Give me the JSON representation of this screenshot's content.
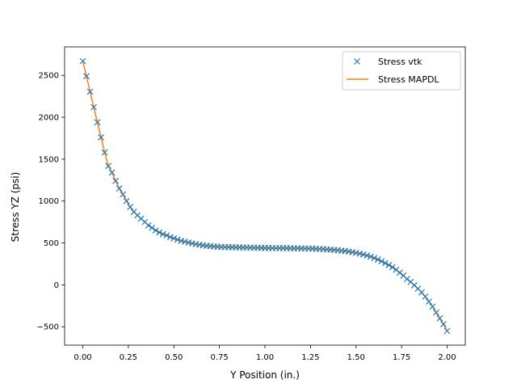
{
  "chart_data": {
    "type": "line",
    "title": "",
    "xlabel": "Y Position (in.)",
    "ylabel": "Stress YZ (psi)",
    "xlim": [
      -0.1,
      2.1
    ],
    "ylim": [
      -720,
      2840
    ],
    "xticks": [
      0.0,
      0.25,
      0.5,
      0.75,
      1.0,
      1.25,
      1.5,
      1.75,
      2.0
    ],
    "xtick_labels": [
      "0.00",
      "0.25",
      "0.50",
      "0.75",
      "1.00",
      "1.25",
      "1.50",
      "1.75",
      "2.00"
    ],
    "yticks": [
      -500,
      0,
      500,
      1000,
      1500,
      2000,
      2500
    ],
    "ytick_labels": [
      "−500",
      "0",
      "500",
      "1000",
      "1500",
      "2000",
      "2500"
    ],
    "grid": false,
    "legend_position": "top-right",
    "series": [
      {
        "name": "Stress vtk",
        "style": "markers",
        "marker": "x",
        "color": "#1f77b4",
        "x": [
          0.0,
          0.02,
          0.04,
          0.06,
          0.08,
          0.1,
          0.12,
          0.14,
          0.16,
          0.18,
          0.2,
          0.22,
          0.24,
          0.26,
          0.28,
          0.3,
          0.32,
          0.34,
          0.36,
          0.38,
          0.4,
          0.42,
          0.44,
          0.46,
          0.48,
          0.5,
          0.52,
          0.54,
          0.56,
          0.58,
          0.6,
          0.62,
          0.64,
          0.66,
          0.68,
          0.7,
          0.72,
          0.74,
          0.76,
          0.78,
          0.8,
          0.82,
          0.84,
          0.86,
          0.88,
          0.9,
          0.92,
          0.94,
          0.96,
          0.98,
          1.0,
          1.02,
          1.04,
          1.06,
          1.08,
          1.1,
          1.12,
          1.14,
          1.16,
          1.18,
          1.2,
          1.22,
          1.24,
          1.26,
          1.28,
          1.3,
          1.32,
          1.34,
          1.36,
          1.38,
          1.4,
          1.42,
          1.44,
          1.46,
          1.48,
          1.5,
          1.52,
          1.54,
          1.56,
          1.58,
          1.6,
          1.62,
          1.64,
          1.66,
          1.68,
          1.7,
          1.72,
          1.74,
          1.76,
          1.78,
          1.8,
          1.82,
          1.84,
          1.86,
          1.88,
          1.9,
          1.92,
          1.94,
          1.96,
          1.98,
          2.0
        ],
        "y": [
          2670,
          2490,
          2305,
          2120,
          1940,
          1760,
          1580,
          1420,
          1340,
          1240,
          1150,
          1080,
          1000,
          930,
          870,
          830,
          790,
          750,
          710,
          680,
          650,
          625,
          605,
          590,
          570,
          555,
          540,
          525,
          515,
          505,
          495,
          485,
          478,
          472,
          466,
          462,
          458,
          455,
          453,
          451,
          450,
          449,
          448,
          447,
          446,
          445,
          444,
          443,
          442,
          441,
          440,
          440,
          439,
          439,
          438,
          438,
          437,
          437,
          436,
          436,
          435,
          434,
          433,
          432,
          430,
          428,
          426,
          423,
          420,
          417,
          413,
          408,
          403,
          397,
          390,
          382,
          372,
          362,
          350,
          336,
          320,
          302,
          282,
          260,
          236,
          210,
          180,
          145,
          110,
          70,
          35,
          -5,
          -45,
          -90,
          -140,
          -200,
          -260,
          -330,
          -400,
          -470,
          -550
        ]
      },
      {
        "name": "Stress MAPDL",
        "style": "line",
        "color": "#ff7f0e",
        "x": [
          0.0,
          0.02,
          0.04,
          0.06,
          0.08,
          0.1,
          0.12,
          0.14,
          0.16,
          0.18,
          0.2,
          0.22,
          0.24,
          0.26,
          0.28,
          0.3,
          0.32,
          0.34,
          0.36,
          0.38,
          0.4,
          0.42,
          0.44,
          0.46,
          0.48,
          0.5,
          0.52,
          0.54,
          0.56,
          0.58,
          0.6,
          0.62,
          0.64,
          0.66,
          0.68,
          0.7,
          0.72,
          0.74,
          0.76,
          0.78,
          0.8,
          0.82,
          0.84,
          0.86,
          0.88,
          0.9,
          0.92,
          0.94,
          0.96,
          0.98,
          1.0,
          1.02,
          1.04,
          1.06,
          1.08,
          1.1,
          1.12,
          1.14,
          1.16,
          1.18,
          1.2,
          1.22,
          1.24,
          1.26,
          1.28,
          1.3,
          1.32,
          1.34,
          1.36,
          1.38,
          1.4,
          1.42,
          1.44,
          1.46,
          1.48,
          1.5,
          1.52,
          1.54,
          1.56,
          1.58,
          1.6,
          1.62,
          1.64,
          1.66,
          1.68,
          1.7,
          1.72,
          1.74,
          1.76,
          1.78,
          1.8,
          1.82,
          1.84,
          1.86,
          1.88,
          1.9,
          1.92,
          1.94,
          1.96,
          1.98,
          2.0
        ],
        "y": [
          2670,
          2490,
          2305,
          2120,
          1940,
          1760,
          1580,
          1420,
          1340,
          1240,
          1150,
          1080,
          1000,
          930,
          870,
          830,
          790,
          750,
          710,
          680,
          650,
          625,
          605,
          590,
          570,
          555,
          540,
          525,
          515,
          505,
          495,
          485,
          478,
          472,
          466,
          462,
          458,
          455,
          453,
          451,
          450,
          449,
          448,
          447,
          446,
          445,
          444,
          443,
          442,
          441,
          440,
          440,
          439,
          439,
          438,
          438,
          437,
          437,
          436,
          436,
          435,
          434,
          433,
          432,
          430,
          428,
          426,
          423,
          420,
          417,
          413,
          408,
          403,
          397,
          390,
          382,
          372,
          362,
          350,
          336,
          320,
          302,
          282,
          260,
          236,
          210,
          180,
          145,
          110,
          70,
          35,
          -5,
          -45,
          -90,
          -140,
          -200,
          -260,
          -330,
          -400,
          -470,
          -550
        ]
      }
    ]
  }
}
